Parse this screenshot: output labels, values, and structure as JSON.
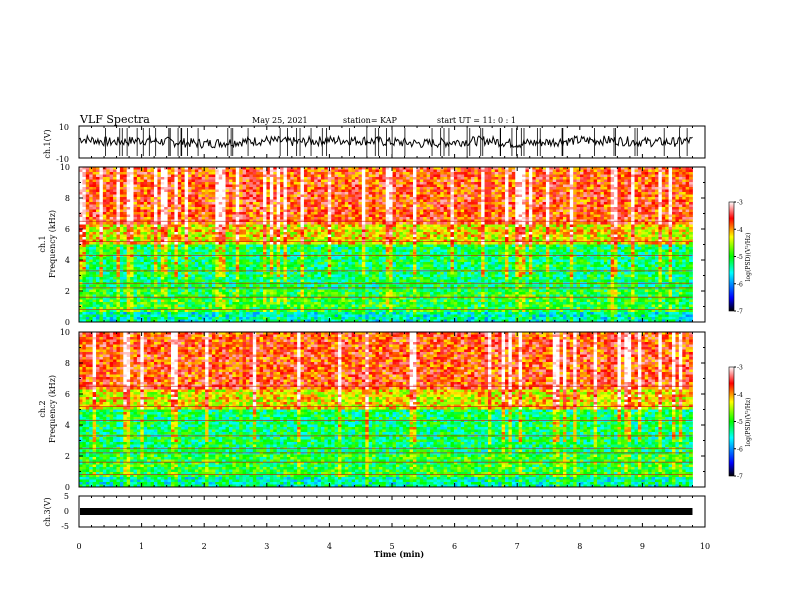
{
  "header": {
    "title": "VLF Spectra",
    "date": "May 25, 2021",
    "station": "station= KAP",
    "start_time": "start  UT =   11: 0  : 1"
  },
  "chart_data": [
    {
      "type": "line",
      "panel": "ch1-voltage",
      "ylabel": "ch.1(V)",
      "ylim": [
        -10,
        10
      ],
      "y_ticks": [
        "10",
        "-10"
      ],
      "xlim": [
        0,
        10
      ],
      "x": [
        0,
        0.5,
        1,
        1.5,
        2,
        2.5,
        3,
        3.5,
        4,
        4.5,
        5,
        5.5,
        6,
        6.5,
        7,
        7.5,
        8,
        8.5,
        9,
        9.5,
        9.8
      ],
      "values": [
        2,
        0,
        1,
        0,
        -1,
        0,
        1,
        0,
        1,
        1,
        0,
        -1,
        0,
        1,
        -1,
        0,
        1,
        1,
        0,
        0,
        1
      ],
      "data_end_min": 9.8
    },
    {
      "type": "heatmap",
      "panel": "ch1-spectrogram",
      "ylabel": "ch.1",
      "ylabel2": "Frequency (kHz)",
      "ylim": [
        0,
        10
      ],
      "y_ticks": [
        "0",
        "2",
        "4",
        "6",
        "8",
        "10"
      ],
      "xlim": [
        0,
        10
      ],
      "data_end_min": 9.8,
      "colorbar": {
        "label": "log(PSD)(V²/Hz)",
        "range": [
          -7,
          -3
        ],
        "ticks": [
          "-3",
          "-4",
          "-5",
          "-6",
          "-7"
        ]
      },
      "bands_kHz": [
        {
          "from": 0,
          "to": 0.8,
          "level": -5.5
        },
        {
          "from": 0.8,
          "to": 2.2,
          "level": -5.0
        },
        {
          "from": 2.2,
          "to": 5.0,
          "level": -5.2
        },
        {
          "from": 5.0,
          "to": 6.3,
          "level": -4.3
        },
        {
          "from": 6.3,
          "to": 10,
          "level": -3.7
        }
      ]
    },
    {
      "type": "heatmap",
      "panel": "ch2-spectrogram",
      "ylabel": "ch.2",
      "ylabel2": "Frequency (kHz)",
      "ylim": [
        0,
        10
      ],
      "y_ticks": [
        "0",
        "2",
        "4",
        "6",
        "8",
        "10"
      ],
      "xlim": [
        0,
        10
      ],
      "data_end_min": 9.8,
      "colorbar": {
        "label": "log(PSD)(V²/Hz)",
        "range": [
          -7,
          -3
        ],
        "ticks": [
          "-3",
          "-4",
          "-5",
          "-6",
          "-7"
        ]
      },
      "bands_kHz": [
        {
          "from": 0,
          "to": 0.8,
          "level": -5.4
        },
        {
          "from": 0.8,
          "to": 2.2,
          "level": -5.0
        },
        {
          "from": 2.2,
          "to": 5.0,
          "level": -5.2
        },
        {
          "from": 5.0,
          "to": 6.3,
          "level": -4.3
        },
        {
          "from": 6.3,
          "to": 10,
          "level": -3.7
        }
      ]
    },
    {
      "type": "line",
      "panel": "ch3-voltage",
      "ylabel": "ch.3(V)",
      "ylim": [
        -5,
        5
      ],
      "y_ticks": [
        "5",
        "0",
        "-5"
      ],
      "xlim": [
        0,
        10
      ],
      "x": [
        0,
        9.8
      ],
      "values": [
        0,
        0
      ],
      "data_end_min": 9.8,
      "xlabel": "Time  (min)",
      "x_ticks": [
        "0",
        "1",
        "2",
        "3",
        "4",
        "5",
        "6",
        "7",
        "8",
        "9",
        "10"
      ]
    }
  ],
  "colors": {
    "trace": "#000000",
    "colormap": [
      "#000000",
      "#0000ff",
      "#00ffff",
      "#00ff00",
      "#ffff00",
      "#ff0000",
      "#ffffff"
    ]
  }
}
